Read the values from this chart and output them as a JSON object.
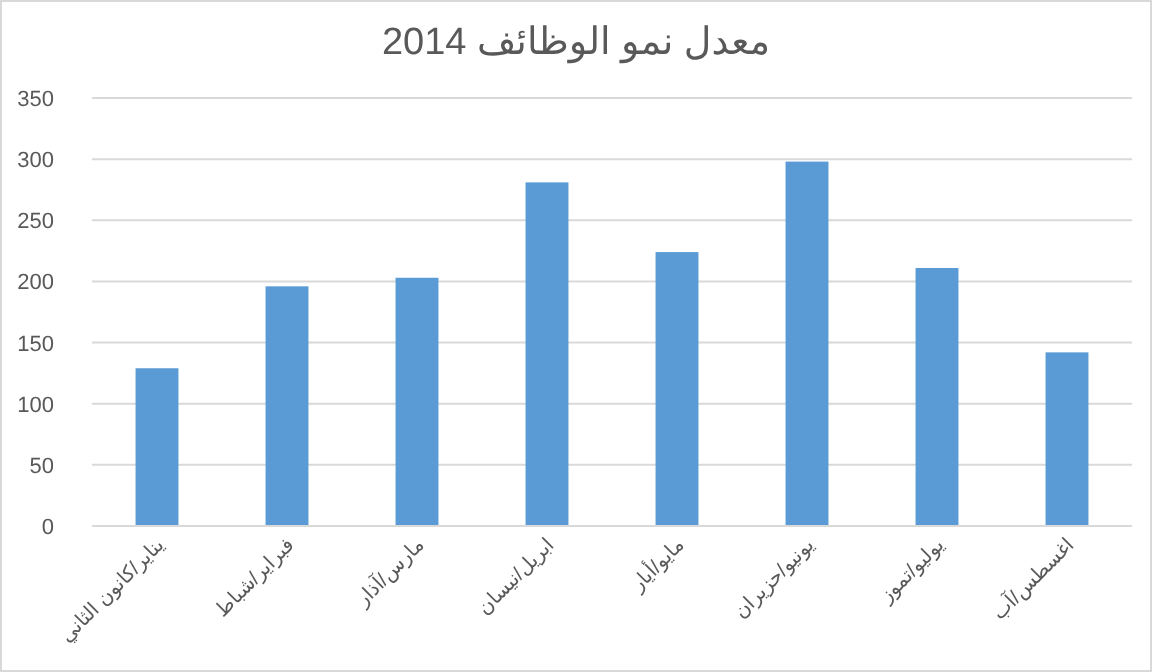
{
  "chart_data": {
    "type": "bar",
    "title": "معدل نمو الوظائف 2014",
    "categories": [
      "يناير/كانون الثاني",
      "فبراير/شباط",
      "مارس/آذار",
      "ابريل/نيسان",
      "مايو/أيار",
      "يونيو/حزيران",
      "يوليو/تموز",
      "اغسطس/آب"
    ],
    "values": [
      129,
      196,
      203,
      281,
      224,
      298,
      211,
      142
    ],
    "color": "#5b9bd5",
    "ylim": [
      0,
      350
    ],
    "yticks": [
      0,
      50,
      100,
      150,
      200,
      250,
      300,
      350
    ],
    "grid": "y"
  }
}
